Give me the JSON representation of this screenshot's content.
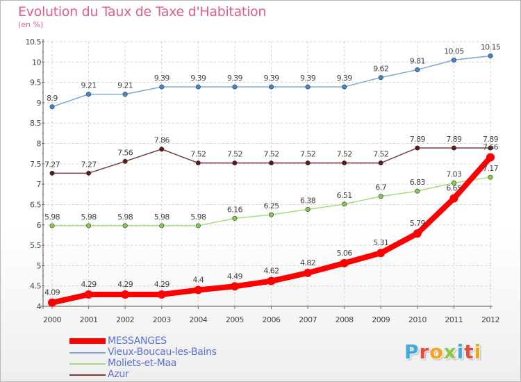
{
  "colors": {
    "title": "#e0607e",
    "legend_text": "#5b6fd6",
    "grid": "#d0d0d0",
    "axis": "#555555",
    "label": "#444444"
  },
  "logo": {
    "letters": [
      "P",
      "r",
      "o",
      "x",
      "i",
      "t",
      "i"
    ],
    "colors": [
      "#3fa9e0",
      "#e84b3c",
      "#f7a21b",
      "#8dc63f",
      "#3fa9e0",
      "#e84b3c",
      "#f7a21b"
    ]
  },
  "chart_data": {
    "type": "line",
    "title": "Evolution du Taux de Taxe d'Habitation",
    "subtitle": "(en %)",
    "xlabel": "",
    "ylabel": "",
    "ylim": [
      4,
      10.5
    ],
    "yticks": [
      "4",
      "4.5",
      "5",
      "5.5",
      "6",
      "6.5",
      "7",
      "7.5",
      "8",
      "8.5",
      "9",
      "9.5",
      "10",
      "10.5"
    ],
    "x": [
      "2000",
      "2001",
      "2002",
      "2003",
      "2004",
      "2005",
      "2006",
      "2007",
      "2008",
      "2009",
      "2010",
      "2011",
      "2012"
    ],
    "grid": true,
    "legend_position": "bottom-left",
    "series": [
      {
        "name": "MESSANGES",
        "color": "#ff0000",
        "marker": "#ff0000",
        "bold": true,
        "values": [
          4.09,
          4.29,
          4.29,
          4.29,
          4.4,
          4.49,
          4.62,
          4.82,
          5.06,
          5.31,
          5.79,
          6.65,
          7.66
        ],
        "labels": [
          "4.09",
          "4.29",
          "4.29",
          "4.29",
          "4.4",
          "4.49",
          "4.62",
          "4.82",
          "5.06",
          "5.31",
          "5.79",
          "6.65",
          "7.66"
        ]
      },
      {
        "name": "Vieux-Boucau-les-Bains",
        "color": "#7ba7d6",
        "marker": "#3f88c8",
        "bold": false,
        "values": [
          8.9,
          9.21,
          9.21,
          9.39,
          9.39,
          9.39,
          9.39,
          9.39,
          9.39,
          9.62,
          9.81,
          10.05,
          10.15
        ],
        "labels": [
          "8.9",
          "9.21",
          "9.21",
          "9.39",
          "9.39",
          "9.39",
          "9.39",
          "9.39",
          "9.39",
          "9.62",
          "9.81",
          "10.05",
          "10.15"
        ]
      },
      {
        "name": "Moliets-et-Maa",
        "color": "#a6dc7e",
        "marker": "#86cc4c",
        "bold": false,
        "values": [
          5.98,
          5.98,
          5.98,
          5.98,
          5.98,
          6.16,
          6.25,
          6.38,
          6.51,
          6.7,
          6.83,
          7.03,
          7.17
        ],
        "labels": [
          "5.98",
          "5.98",
          "5.98",
          "5.98",
          "5.98",
          "6.16",
          "6.25",
          "6.38",
          "6.51",
          "6.7",
          "6.83",
          "7.03",
          "7.17"
        ]
      },
      {
        "name": "Azur",
        "color": "#7a3a3a",
        "marker": "#5a1a1a",
        "bold": false,
        "values": [
          7.27,
          7.27,
          7.56,
          7.86,
          7.52,
          7.52,
          7.52,
          7.52,
          7.52,
          7.52,
          7.89,
          7.89,
          7.89
        ],
        "labels": [
          "7.27",
          "7.27",
          "7.56",
          "7.86",
          "7.52",
          "7.52",
          "7.52",
          "7.52",
          "7.52",
          "7.52",
          "7.89",
          "7.89",
          "7.89"
        ]
      }
    ]
  }
}
